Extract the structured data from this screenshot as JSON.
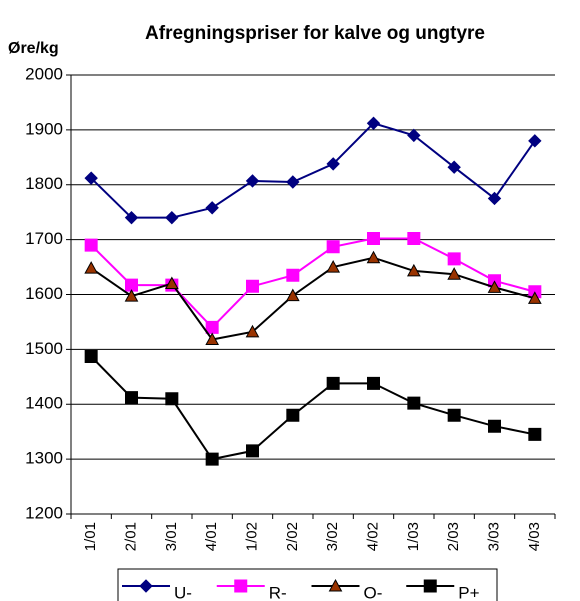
{
  "chart_data": {
    "type": "line",
    "title": "Afregningspriser for kalve og ungtyre",
    "y_label": "Øre/kg",
    "categories": [
      "1/01",
      "2/01",
      "3/01",
      "4/01",
      "1/02",
      "2/02",
      "3/02",
      "4/02",
      "1/03",
      "2/03",
      "3/03",
      "4/03"
    ],
    "series": [
      {
        "name": "U-",
        "color": "#000080",
        "marker": "diamond",
        "marker_color": "#000080",
        "values": [
          1812,
          1740,
          1740,
          1758,
          1807,
          1805,
          1838,
          1912,
          1890,
          1832,
          1775,
          1880
        ]
      },
      {
        "name": "R-",
        "color": "#ff00ff",
        "marker": "square",
        "marker_color": "#ff00ff",
        "values": [
          1690,
          1617,
          1617,
          1540,
          1615,
          1635,
          1687,
          1702,
          1702,
          1665,
          1625,
          1605
        ]
      },
      {
        "name": "O-",
        "color": "#000000",
        "marker": "triangle",
        "marker_color": "#993300",
        "values": [
          1648,
          1597,
          1620,
          1518,
          1532,
          1598,
          1650,
          1667,
          1643,
          1637,
          1613,
          1593
        ]
      },
      {
        "name": "P+",
        "color": "#000000",
        "marker": "square",
        "marker_color": "#000000",
        "values": [
          1487,
          1412,
          1410,
          1300,
          1315,
          1380,
          1438,
          1438,
          1402,
          1380,
          1360,
          1345
        ]
      }
    ],
    "ylim": [
      1200,
      2000
    ],
    "yticks": [
      1200,
      1300,
      1400,
      1500,
      1600,
      1700,
      1800,
      1900,
      2000
    ],
    "grid": true,
    "legend": "bottom"
  }
}
